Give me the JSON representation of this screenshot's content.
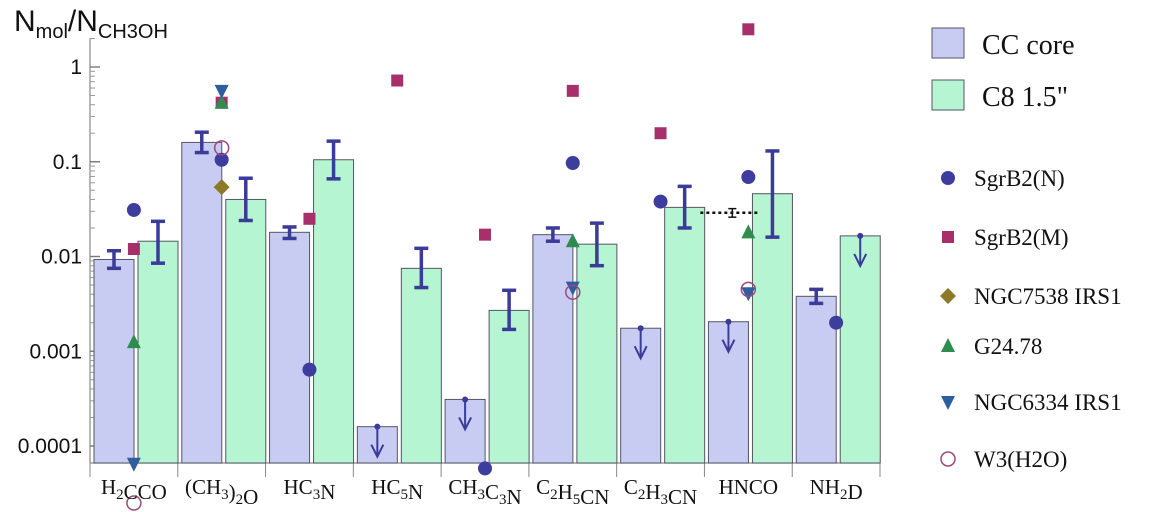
{
  "chart_data": {
    "type": "bar",
    "yscale": "log",
    "ylim": [
      6e-05,
      2.5
    ],
    "ylabel": {
      "main1": "N",
      "sub1": "mol",
      "main2": "/N",
      "sub2": "CH3OH"
    },
    "yticks": [
      {
        "value": 1,
        "label": "1"
      },
      {
        "value": 0.1,
        "label": "0.1"
      },
      {
        "value": 0.01,
        "label": "0.01"
      },
      {
        "value": 0.001,
        "label": "0.001"
      },
      {
        "value": 0.0001,
        "label": "0.0001"
      }
    ],
    "categories": [
      {
        "id": "H2CCO",
        "parts": [
          {
            "t": "H"
          },
          {
            "t": "2",
            "sub": true
          },
          {
            "t": "CCO"
          }
        ]
      },
      {
        "id": "(CH3)2O",
        "parts": [
          {
            "t": "(CH"
          },
          {
            "t": "3",
            "sub": true
          },
          {
            "t": ")"
          },
          {
            "t": "2",
            "sub": true
          },
          {
            "t": "O"
          }
        ]
      },
      {
        "id": "HC3N",
        "parts": [
          {
            "t": "HC"
          },
          {
            "t": "3",
            "sub": true
          },
          {
            "t": "N"
          }
        ]
      },
      {
        "id": "HC5N",
        "parts": [
          {
            "t": "HC"
          },
          {
            "t": "5",
            "sub": true
          },
          {
            "t": "N"
          }
        ]
      },
      {
        "id": "CH3C3N",
        "parts": [
          {
            "t": "CH"
          },
          {
            "t": "3",
            "sub": true
          },
          {
            "t": "C"
          },
          {
            "t": "3",
            "sub": true
          },
          {
            "t": "N"
          }
        ]
      },
      {
        "id": "C2H5CN",
        "parts": [
          {
            "t": "C"
          },
          {
            "t": "2",
            "sub": true
          },
          {
            "t": "H"
          },
          {
            "t": "5",
            "sub": true
          },
          {
            "t": "CN"
          }
        ]
      },
      {
        "id": "C2H3CN",
        "parts": [
          {
            "t": "C"
          },
          {
            "t": "2",
            "sub": true
          },
          {
            "t": "H"
          },
          {
            "t": "3",
            "sub": true
          },
          {
            "t": "CN"
          }
        ]
      },
      {
        "id": "HNCO",
        "parts": [
          {
            "t": "HNCO"
          }
        ]
      },
      {
        "id": "NH2D",
        "parts": [
          {
            "t": "NH"
          },
          {
            "t": "2",
            "sub": true
          },
          {
            "t": "D"
          }
        ]
      }
    ],
    "series": [
      {
        "name": "CC core",
        "color": "#c8ccf2",
        "edge": "#555566",
        "bars": [
          {
            "value": 0.0093,
            "err_lo": 0.0075,
            "err_hi": 0.0115,
            "upper_limit": false
          },
          {
            "value": 0.16,
            "err_lo": 0.125,
            "err_hi": 0.205,
            "upper_limit": false
          },
          {
            "value": 0.018,
            "err_lo": 0.0155,
            "err_hi": 0.0205,
            "upper_limit": false
          },
          {
            "value": 0.00016,
            "upper_limit": true
          },
          {
            "value": 0.00031,
            "upper_limit": true
          },
          {
            "value": 0.017,
            "err_lo": 0.0145,
            "err_hi": 0.02,
            "upper_limit": false
          },
          {
            "value": 0.00175,
            "upper_limit": true
          },
          {
            "value": 0.00205,
            "upper_limit": true
          },
          {
            "value": 0.0038,
            "err_lo": 0.0032,
            "err_hi": 0.0045,
            "upper_limit": false
          }
        ]
      },
      {
        "name": "C8 1.5\"",
        "color": "#b5f5d2",
        "edge": "#555566",
        "bars": [
          {
            "value": 0.0145,
            "err_lo": 0.0085,
            "err_hi": 0.0235,
            "upper_limit": false
          },
          {
            "value": 0.04,
            "err_lo": 0.024,
            "err_hi": 0.067,
            "upper_limit": false
          },
          {
            "value": 0.105,
            "err_lo": 0.066,
            "err_hi": 0.165,
            "upper_limit": false
          },
          {
            "value": 0.0075,
            "err_lo": 0.0047,
            "err_hi": 0.0122,
            "upper_limit": false
          },
          {
            "value": 0.0027,
            "err_lo": 0.0017,
            "err_hi": 0.0044,
            "upper_limit": false
          },
          {
            "value": 0.0135,
            "err_lo": 0.008,
            "err_hi": 0.0225,
            "upper_limit": false
          },
          {
            "value": 0.033,
            "err_lo": 0.02,
            "err_hi": 0.055,
            "upper_limit": false
          },
          {
            "value": 0.046,
            "err_lo": 0.016,
            "err_hi": 0.13,
            "upper_limit": false
          },
          {
            "value": 0.0165,
            "upper_limit": true
          }
        ]
      }
    ],
    "markers": [
      {
        "name": "SgrB2(N)",
        "shape": "circle",
        "color": "#3d3d9e",
        "filled": true,
        "values": [
          0.031,
          0.105,
          0.00064,
          null,
          5.8e-05,
          0.097,
          0.038,
          0.069,
          0.002
        ]
      },
      {
        "name": "SgrB2(M)",
        "shape": "square",
        "color": "#a8306a",
        "filled": true,
        "values": [
          0.012,
          0.42,
          0.025,
          0.72,
          0.017,
          0.56,
          0.2,
          2.5,
          null
        ]
      },
      {
        "name": "NGC7538 IRS1",
        "shape": "diamond",
        "color": "#8d7a28",
        "filled": true,
        "values": [
          null,
          0.054,
          null,
          null,
          null,
          null,
          null,
          null,
          null
        ]
      },
      {
        "name": "G24.78",
        "shape": "triangle-up",
        "color": "#2e8c4e",
        "filled": true,
        "values": [
          0.00125,
          0.42,
          null,
          null,
          null,
          0.0145,
          null,
          0.018,
          null
        ]
      },
      {
        "name": "NGC6334 IRS1",
        "shape": "triangle-down",
        "color": "#2f5d9e",
        "filled": true,
        "values": [
          6.5e-05,
          0.56,
          null,
          null,
          null,
          0.0047,
          null,
          0.0041,
          null
        ]
      },
      {
        "name": "W3(H2O)",
        "shape": "circle",
        "color": "#9a4a7a",
        "filled": false,
        "values": [
          2.5e-05,
          0.14,
          null,
          null,
          null,
          0.0042,
          null,
          0.0045,
          null
        ]
      }
    ],
    "annotation": {
      "category": "HNCO",
      "value": 0.029,
      "err_lo": 0.026,
      "err_hi": 0.032,
      "style": "dotted"
    },
    "legend": {
      "placement": "right",
      "bar_entries": [
        "CC core",
        "C8 1.5\""
      ],
      "marker_entries": [
        "SgrB2(N)",
        "SgrB2(M)",
        "NGC7538 IRS1",
        "G24.78",
        "NGC6334 IRS1",
        "W3(H2O)"
      ]
    },
    "grid": false
  }
}
